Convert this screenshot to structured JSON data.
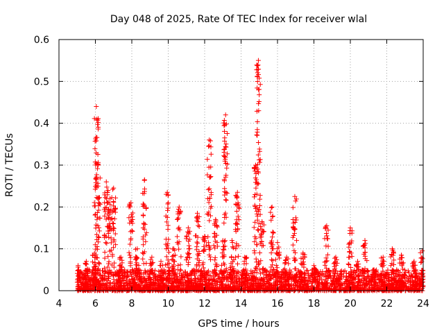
{
  "chart_data": {
    "type": "scatter",
    "title": "Day 048 of 2025, Rate Of TEC Index for receiver wlal",
    "xlabel": "GPS time / hours",
    "ylabel": "ROTI / TECUs",
    "xlim": [
      4,
      24
    ],
    "ylim": [
      0,
      0.6
    ],
    "xticks": [
      4,
      6,
      8,
      10,
      12,
      14,
      16,
      18,
      20,
      22,
      24
    ],
    "yticks": [
      0,
      0.1,
      0.2,
      0.3,
      0.4,
      0.5,
      0.6
    ],
    "ytick_labels": [
      "0",
      "0.1",
      "0.2",
      "0.3",
      "0.4",
      "0.5",
      "0.6"
    ],
    "grid": true,
    "marker": "+",
    "marker_color": "#ff0000",
    "series_name": "ROTI",
    "data_coverage": [
      5.0,
      24.0
    ],
    "baseline_range": [
      0.0,
      0.05
    ],
    "spikes": [
      {
        "x": 5.05,
        "peak": 0.06
      },
      {
        "x": 5.5,
        "peak": 0.07
      },
      {
        "x": 5.95,
        "peak": 0.09
      },
      {
        "x": 6.05,
        "peak": 0.44
      },
      {
        "x": 6.15,
        "peak": 0.3
      },
      {
        "x": 6.6,
        "peak": 0.26
      },
      {
        "x": 6.8,
        "peak": 0.22
      },
      {
        "x": 7.0,
        "peak": 0.245
      },
      {
        "x": 7.4,
        "peak": 0.08
      },
      {
        "x": 7.95,
        "peak": 0.21
      },
      {
        "x": 8.3,
        "peak": 0.1
      },
      {
        "x": 8.7,
        "peak": 0.265
      },
      {
        "x": 9.1,
        "peak": 0.08
      },
      {
        "x": 9.6,
        "peak": 0.07
      },
      {
        "x": 9.95,
        "peak": 0.235
      },
      {
        "x": 10.3,
        "peak": 0.1
      },
      {
        "x": 10.6,
        "peak": 0.2
      },
      {
        "x": 11.1,
        "peak": 0.15
      },
      {
        "x": 11.6,
        "peak": 0.185
      },
      {
        "x": 12.0,
        "peak": 0.13
      },
      {
        "x": 12.25,
        "peak": 0.36
      },
      {
        "x": 12.6,
        "peak": 0.17
      },
      {
        "x": 13.0,
        "peak": 0.12
      },
      {
        "x": 13.15,
        "peak": 0.42
      },
      {
        "x": 13.5,
        "peak": 0.12
      },
      {
        "x": 13.8,
        "peak": 0.235
      },
      {
        "x": 14.2,
        "peak": 0.08
      },
      {
        "x": 14.8,
        "peak": 0.3
      },
      {
        "x": 14.95,
        "peak": 0.55
      },
      {
        "x": 15.15,
        "peak": 0.165
      },
      {
        "x": 15.7,
        "peak": 0.2
      },
      {
        "x": 16.0,
        "peak": 0.115
      },
      {
        "x": 16.5,
        "peak": 0.08
      },
      {
        "x": 16.95,
        "peak": 0.225
      },
      {
        "x": 17.4,
        "peak": 0.09
      },
      {
        "x": 18.0,
        "peak": 0.06
      },
      {
        "x": 18.7,
        "peak": 0.155
      },
      {
        "x": 19.2,
        "peak": 0.08
      },
      {
        "x": 20.0,
        "peak": 0.15
      },
      {
        "x": 20.4,
        "peak": 0.07
      },
      {
        "x": 20.8,
        "peak": 0.12
      },
      {
        "x": 21.3,
        "peak": 0.05
      },
      {
        "x": 21.8,
        "peak": 0.08
      },
      {
        "x": 22.3,
        "peak": 0.1
      },
      {
        "x": 22.8,
        "peak": 0.085
      },
      {
        "x": 23.5,
        "peak": 0.07
      },
      {
        "x": 23.95,
        "peak": 0.095
      }
    ]
  }
}
